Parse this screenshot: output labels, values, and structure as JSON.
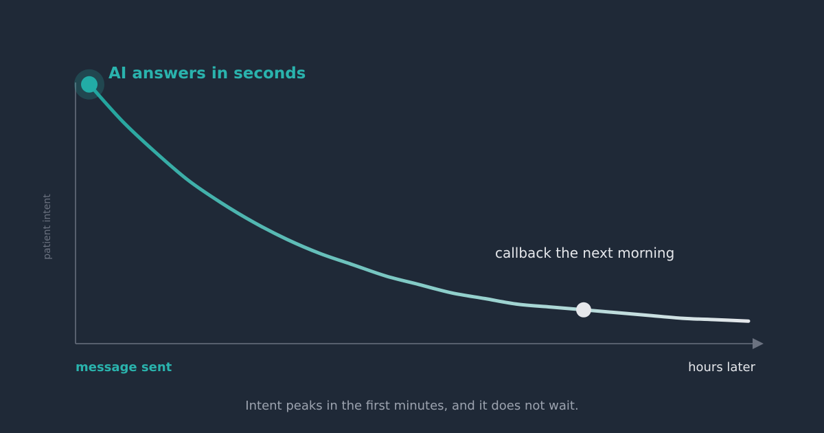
{
  "chart_data": {
    "type": "line",
    "title": "",
    "ylabel": "patient intent",
    "x_start_label": "message sent",
    "x_end_label": "hours later",
    "ylim": [
      0,
      1
    ],
    "series": [
      {
        "x": [
          0,
          0.05,
          0.1,
          0.15,
          0.2,
          0.25,
          0.3,
          0.35,
          0.4,
          0.45,
          0.5,
          0.55,
          0.6,
          0.65,
          0.7,
          0.75,
          0.8,
          0.85,
          0.9,
          0.95,
          1
        ],
        "y": [
          0.92,
          0.79,
          0.68,
          0.58,
          0.5,
          0.43,
          0.37,
          0.32,
          0.28,
          0.24,
          0.21,
          0.18,
          0.16,
          0.14,
          0.13,
          0.12,
          0.11,
          0.1,
          0.09,
          0.085,
          0.08
        ]
      }
    ],
    "annotations": [
      {
        "label": "AI answers in seconds",
        "x": 0,
        "y": 0.92
      },
      {
        "label": "callback the next morning",
        "x": 0.75,
        "y": 0.12
      }
    ],
    "caption": "Intent peaks in the first minutes, and it does not wait.",
    "colors": {
      "background": "#1f2937",
      "accent": "#2ab3ad",
      "curve_end": "#e5e7eb",
      "axis": "#6b7280",
      "caption": "#9ca3af"
    }
  }
}
